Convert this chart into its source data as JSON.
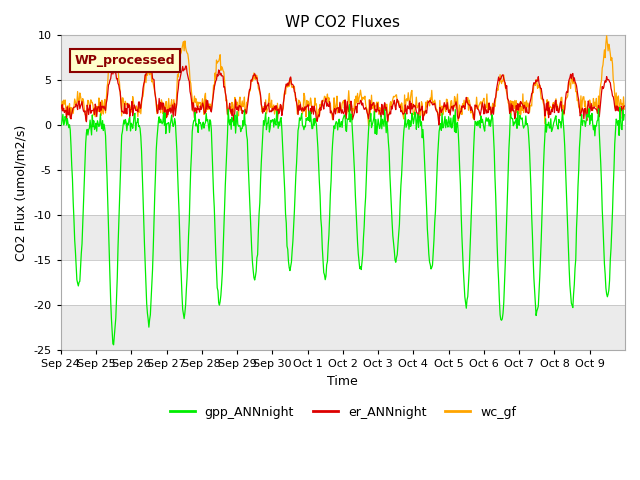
{
  "title": "WP CO2 Fluxes",
  "xlabel": "Time",
  "ylabel_display": "CO2 Flux (umol/m2/s)",
  "ylim": [
    -25,
    10
  ],
  "annotation_text": "WP_processed",
  "annotation_color": "#8B0000",
  "annotation_bg": "#FFFFCC",
  "line_colors": {
    "gpp": "#00EE00",
    "er": "#DD0000",
    "wc": "#FFA500"
  },
  "legend_labels": [
    "gpp_ANNnight",
    "er_ANNnight",
    "wc_gf"
  ],
  "xtick_labels": [
    "Sep 24",
    "Sep 25",
    "Sep 26",
    "Sep 27",
    "Sep 28",
    "Sep 29",
    "Sep 30",
    "Oct 1",
    "Oct 2",
    "Oct 3",
    "Oct 4",
    "Oct 5",
    "Oct 6",
    "Oct 7",
    "Oct 8",
    "Oct 9"
  ],
  "bg_color": "#FFFFFF",
  "plot_bg_light": "#EBEBEB",
  "plot_bg_dark": "#FFFFFF",
  "figsize": [
    6.4,
    4.8
  ],
  "dpi": 100,
  "gpp_day_depths": [
    -18,
    -24,
    -22,
    -21,
    -20,
    -17,
    -16,
    -17,
    -16,
    -15,
    -16,
    -20,
    -22,
    -21,
    -20,
    -19
  ],
  "er_day_peaks": [
    2.5,
    6.0,
    6.5,
    6.5,
    6.0,
    5.5,
    5.0,
    2.5,
    2.5,
    2.5,
    2.5,
    2.5,
    5.5,
    5.0,
    5.5,
    5.0
  ],
  "wc_day_peaks": [
    3.0,
    7.5,
    6.0,
    9.0,
    7.0,
    5.5,
    5.0,
    3.0,
    3.5,
    3.0,
    3.0,
    2.5,
    5.0,
    4.5,
    5.0,
    9.0
  ]
}
